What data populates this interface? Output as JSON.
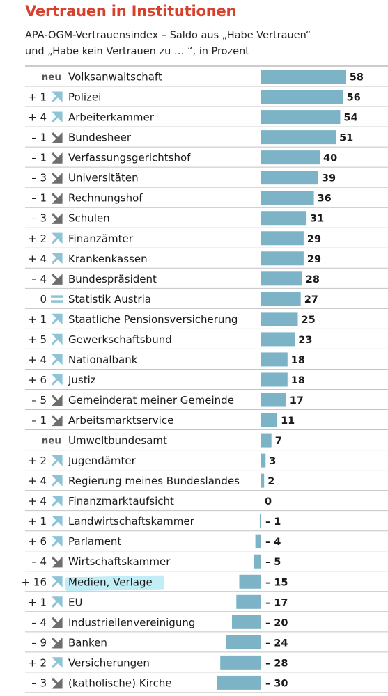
{
  "title": "Vertrauen in Institutionen",
  "subtitle": {
    "line1": "APA-OGM-Vertrauensindex – Saldo aus „Habe Vertrauen“",
    "line2": "und „Habe kein Vertrauen zu … “, in Prozent"
  },
  "colors": {
    "title": "#d9402b",
    "bar": "#7db3c7",
    "arrow_up": "#8ec4d6",
    "arrow_down": "#6e6e6e",
    "equal": "#8ec4d6",
    "highlight": "#8fd9ea"
  },
  "chart_data": {
    "type": "bar",
    "orientation": "horizontal",
    "categories": [
      "Volksanwaltschaft",
      "Polizei",
      "Arbeiterkammer",
      "Bundesheer",
      "Verfassungsgerichtshof",
      "Universitäten",
      "Rechnungshof",
      "Schulen",
      "Finanzämter",
      "Krankenkassen",
      "Bundespräsident",
      "Statistik Austria",
      "Staatliche Pensionsversicherung",
      "Gewerkschaftsbund",
      "Nationalbank",
      "Justiz",
      "Gemeinderat meiner Gemeinde",
      "Arbeitsmarktservice",
      "Umweltbundesamt",
      "Jugendämter",
      "Regierung meines Bundeslandes",
      "Finanzmarktaufsicht",
      "Landwirtschaftskammer",
      "Parlament",
      "Wirtschaftskammer",
      "Medien, Verlage",
      "EU",
      "Industriellenvereinigung",
      "Banken",
      "Versicherungen",
      "(katholische) Kirche"
    ],
    "values": [
      58,
      56,
      54,
      51,
      40,
      39,
      36,
      31,
      29,
      29,
      28,
      27,
      25,
      23,
      18,
      18,
      17,
      11,
      7,
      3,
      2,
      0,
      -1,
      -4,
      -5,
      -15,
      -17,
      -20,
      -24,
      -28,
      -30
    ],
    "value_labels": [
      "58",
      "56",
      "54",
      "51",
      "40",
      "39",
      "36",
      "31",
      "29",
      "29",
      "28",
      "27",
      "25",
      "23",
      "18",
      "18",
      "17",
      "11",
      "7",
      "3",
      "2",
      "0",
      "– 1",
      "– 4",
      "– 5",
      "– 15",
      "– 17",
      "– 20",
      "– 24",
      "– 28",
      "– 30"
    ],
    "changes": [
      "neu",
      "+ 1",
      "+ 4",
      "– 1",
      "– 1",
      "– 3",
      "– 1",
      "– 3",
      "+ 2",
      "+ 4",
      "– 4",
      "0",
      "+ 1",
      "+ 5",
      "+ 4",
      "+ 6",
      "– 5",
      "– 1",
      "neu",
      "+ 2",
      "+ 4",
      "+ 4",
      "+ 1",
      "+ 6",
      "– 4",
      "+ 16",
      "+ 1",
      "– 4",
      "– 9",
      "+ 2",
      "– 3"
    ],
    "trends": [
      "none",
      "up",
      "up",
      "down",
      "down",
      "down",
      "down",
      "down",
      "up",
      "up",
      "down",
      "equal",
      "up",
      "up",
      "up",
      "up",
      "down",
      "down",
      "none",
      "up",
      "up",
      "up",
      "up",
      "up",
      "down",
      "up",
      "up",
      "down",
      "down",
      "up",
      "down"
    ],
    "highlighted_category": "Medien, Verlage",
    "xlim": [
      -30,
      58
    ],
    "grid": false
  }
}
